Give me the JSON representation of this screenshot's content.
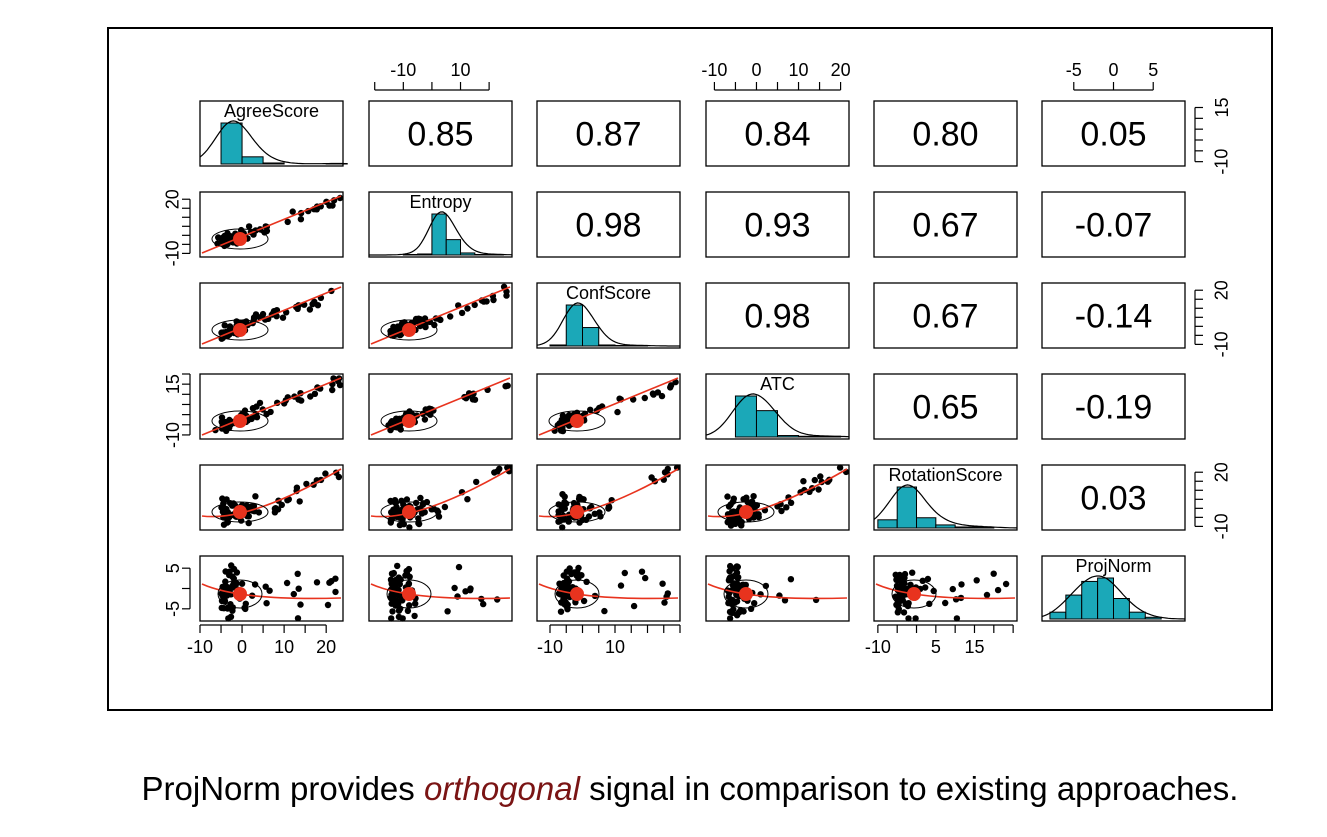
{
  "chart_data": {
    "type": "scatter-matrix",
    "variables": [
      "AgreeScore",
      "Entropy",
      "ConfScore",
      "ATC",
      "RotationScore",
      "ProjNorm"
    ],
    "correlations": [
      {
        "row": 0,
        "col": 1,
        "label": "0.85",
        "value": 0.85
      },
      {
        "row": 0,
        "col": 2,
        "label": "0.87",
        "value": 0.87
      },
      {
        "row": 0,
        "col": 3,
        "label": "0.84",
        "value": 0.84
      },
      {
        "row": 0,
        "col": 4,
        "label": "0.80",
        "value": 0.8
      },
      {
        "row": 0,
        "col": 5,
        "label": "0.05",
        "value": 0.05
      },
      {
        "row": 1,
        "col": 2,
        "label": "0.98",
        "value": 0.98
      },
      {
        "row": 1,
        "col": 3,
        "label": "0.93",
        "value": 0.93
      },
      {
        "row": 1,
        "col": 4,
        "label": "0.67",
        "value": 0.67
      },
      {
        "row": 1,
        "col": 5,
        "label": "-0.07",
        "value": -0.07
      },
      {
        "row": 2,
        "col": 3,
        "label": "0.98",
        "value": 0.98
      },
      {
        "row": 2,
        "col": 4,
        "label": "0.67",
        "value": 0.67
      },
      {
        "row": 2,
        "col": 5,
        "label": "-0.14",
        "value": -0.14
      },
      {
        "row": 3,
        "col": 4,
        "label": "0.65",
        "value": 0.65
      },
      {
        "row": 3,
        "col": 5,
        "label": "-0.19",
        "value": -0.19
      },
      {
        "row": 4,
        "col": 5,
        "label": "0.03",
        "value": 0.03
      }
    ],
    "top_axes": [
      {
        "col": 1,
        "labels": [
          "-10",
          "10"
        ],
        "values": [
          -10,
          10
        ],
        "range": [
          -22,
          28
        ],
        "minor_step": 10
      },
      {
        "col": 3,
        "labels": [
          "-10",
          "0",
          "10",
          "20"
        ],
        "values": [
          -10,
          0,
          10,
          20
        ],
        "range": [
          -12,
          22
        ],
        "minor_step": 5
      },
      {
        "col": 5,
        "labels": [
          "-5",
          "0",
          "5"
        ],
        "values": [
          -5,
          0,
          5
        ],
        "range": [
          -9,
          9
        ],
        "minor_step": 5
      }
    ],
    "bottom_axes": [
      {
        "col": 0,
        "labels": [
          "-10",
          "0",
          "10",
          "20"
        ],
        "values": [
          -10,
          0,
          10,
          20
        ],
        "range": [
          -10,
          24
        ],
        "minor_step": 5
      },
      {
        "col": 2,
        "labels": [
          "-10",
          "10"
        ],
        "values": [
          -10,
          10
        ],
        "range": [
          -14,
          30
        ],
        "minor_step": 5
      },
      {
        "col": 4,
        "labels": [
          "-10",
          "5",
          "15"
        ],
        "values": [
          -10,
          5,
          15
        ],
        "range": [
          -11,
          26
        ],
        "minor_step": 5
      }
    ],
    "left_axes": [
      {
        "row": 1,
        "labels": [
          "20",
          "-10"
        ],
        "values": [
          20,
          -10
        ],
        "range": [
          -12,
          24
        ],
        "minor_step": 5
      },
      {
        "row": 3,
        "labels": [
          "15",
          "-10"
        ],
        "values": [
          15,
          -10
        ],
        "range": [
          -12,
          20
        ],
        "minor_step": 5
      },
      {
        "row": 5,
        "labels": [
          "5",
          "-5"
        ],
        "values": [
          5,
          -5
        ],
        "range": [
          -8,
          8
        ],
        "minor_step": 5
      }
    ],
    "right_axes": [
      {
        "row": 0,
        "labels": [
          "15",
          "-10"
        ],
        "values": [
          15,
          -10
        ],
        "range": [
          -12,
          18
        ],
        "minor_step": 5
      },
      {
        "row": 2,
        "labels": [
          "20",
          "-10"
        ],
        "values": [
          20,
          -10
        ],
        "range": [
          -12,
          24
        ],
        "minor_step": 5
      },
      {
        "row": 4,
        "labels": [
          "20",
          "-10"
        ],
        "values": [
          20,
          -10
        ],
        "range": [
          -12,
          24
        ],
        "minor_step": 5
      }
    ],
    "histograms": [
      {
        "var": "AgreeScore",
        "bin_start": -5,
        "bin_width": 5,
        "counts": [
          40,
          7,
          1,
          0,
          0,
          0.5
        ],
        "range": [
          -10,
          24
        ]
      },
      {
        "var": "Entropy",
        "bin_start": -10,
        "bin_width": 5,
        "counts": [
          0.5,
          1,
          40,
          15,
          2,
          0.5,
          0.5
        ],
        "range": [
          -22,
          28
        ]
      },
      {
        "var": "ConfScore",
        "bin_start": -10,
        "bin_width": 5,
        "counts": [
          1,
          40,
          18,
          1,
          0.5,
          0.5
        ],
        "range": [
          -14,
          30
        ]
      },
      {
        "var": "ATC",
        "bin_start": -5,
        "bin_width": 5,
        "counts": [
          28,
          18,
          1,
          0.5,
          0.5
        ],
        "range": [
          -12,
          22
        ]
      },
      {
        "var": "RotationScore",
        "bin_start": -10,
        "bin_width": 5,
        "counts": [
          8,
          40,
          10,
          3,
          1,
          1
        ],
        "range": [
          -11,
          26
        ]
      },
      {
        "var": "ProjNorm",
        "bin_start": -8,
        "bin_width": 2,
        "counts": [
          4,
          14,
          22,
          24,
          12,
          4,
          1
        ],
        "range": [
          -9,
          9
        ]
      }
    ],
    "scatter_style": {
      "point_color": "#000000",
      "fit_color": "#e8331e",
      "hist_color": "#1ba8b8"
    }
  },
  "caption": {
    "before": "ProjNorm provides ",
    "emphasis": "orthogonal",
    "after": " signal in comparison to existing approaches.",
    "emphasis_color": "#7a1414"
  }
}
